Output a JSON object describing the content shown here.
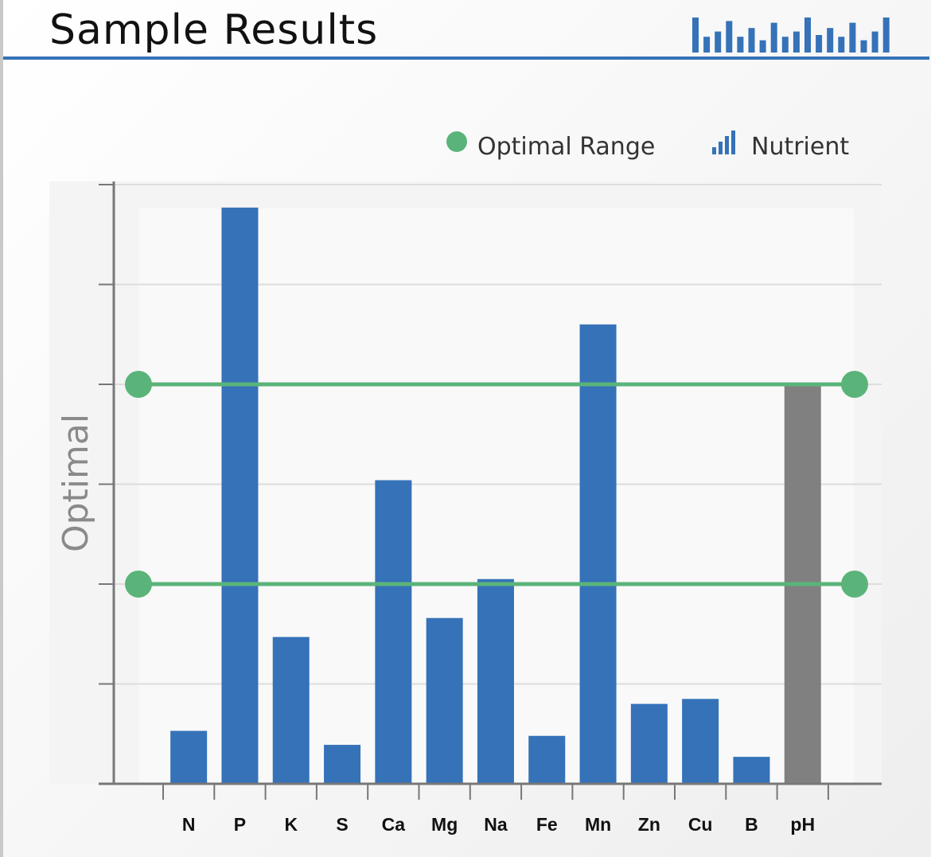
{
  "header": {
    "title": "Sample Results"
  },
  "colors": {
    "nutrient": "#3572b8",
    "ph": "#808080",
    "optimal": "#5ab47a",
    "axis": "#777777",
    "grid": "#dddddd"
  },
  "logo": {
    "icon": "bar-chart-logo-icon",
    "bar_levels": [
      1.0,
      0.45,
      0.6,
      0.9,
      0.45,
      0.7,
      0.35,
      0.85,
      0.45,
      0.6,
      1.0,
      0.5,
      0.7,
      0.45,
      0.85,
      0.35,
      0.6,
      1.0
    ]
  },
  "chart_data": {
    "type": "bar",
    "ylabel": "Optimal",
    "ylim": [
      0,
      6
    ],
    "grid": true,
    "legend": {
      "placement": "top-right",
      "items": [
        {
          "label": "Optimal Range",
          "icon": "green-dot-icon"
        },
        {
          "label": "Nutrient",
          "icon": "bar-icon"
        }
      ]
    },
    "optimal_range": [
      2,
      4
    ],
    "categories": [
      "N",
      "P",
      "K",
      "S",
      "Ca",
      "Mg",
      "Na",
      "Fe",
      "Mn",
      "Zn",
      "Cu",
      "B",
      "pH"
    ],
    "series": [
      {
        "values": [
          0.53,
          5.77,
          1.47,
          0.39,
          3.04,
          1.66,
          2.05,
          0.48,
          4.6,
          0.8,
          0.85,
          0.27,
          4.01
        ]
      }
    ],
    "highlight_category": "pH"
  }
}
